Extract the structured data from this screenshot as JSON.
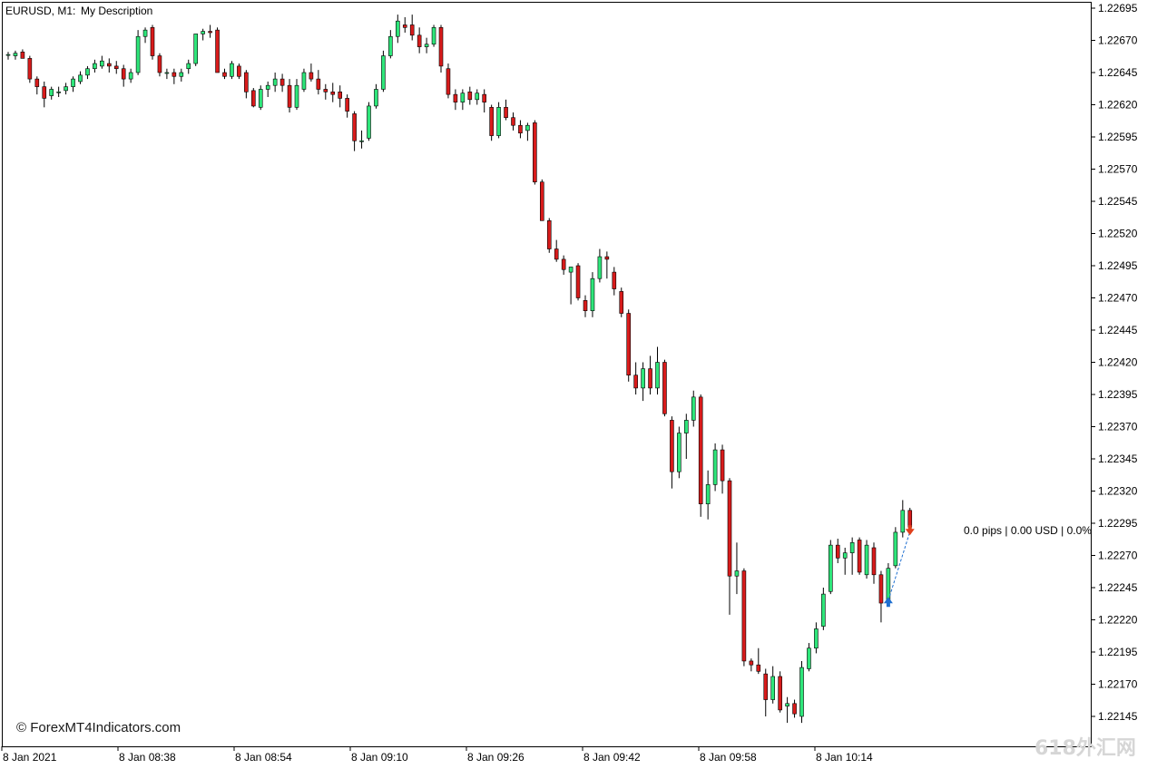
{
  "header": {
    "symbol_tf": "EURUSD, M1:",
    "description": "My Description"
  },
  "copyright": "© ForexMT4Indicators.com",
  "watermark": "618外汇网",
  "trade_info": "0.0 pips | 0.00 USD | 0.0%",
  "colors": {
    "bull": "#2ee67a",
    "bear": "#d81b1b",
    "wick": "#000000",
    "grid": "#000000",
    "buy_arrow": "#1e6fd0",
    "sell_arrow": "#e0401c",
    "trade_line": "#1e6fd0"
  },
  "chart_data": {
    "type": "candlestick",
    "symbol": "EURUSD",
    "timeframe": "M1",
    "ylim": [
      1.22128,
      1.22705
    ],
    "y_ticks": [
      "1.22695",
      "1.22670",
      "1.22645",
      "1.22620",
      "1.22595",
      "1.22570",
      "1.22545",
      "1.22520",
      "1.22495",
      "1.22470",
      "1.22445",
      "1.22420",
      "1.22395",
      "1.22370",
      "1.22345",
      "1.22320",
      "1.22295",
      "1.22270",
      "1.22245",
      "1.22220",
      "1.22195",
      "1.22170",
      "1.22145"
    ],
    "x_ticks": [
      "8 Jan 2021",
      "8 Jan 08:38",
      "8 Jan 08:54",
      "8 Jan 09:10",
      "8 Jan 09:26",
      "8 Jan 09:42",
      "8 Jan 09:58",
      "8 Jan 10:14"
    ],
    "candles": [
      {
        "o": 1.22659,
        "h": 1.22661,
        "l": 1.22655,
        "c": 1.22659
      },
      {
        "o": 1.22658,
        "h": 1.22662,
        "l": 1.22655,
        "c": 1.2266
      },
      {
        "o": 1.22661,
        "h": 1.22663,
        "l": 1.22656,
        "c": 1.22656
      },
      {
        "o": 1.22656,
        "h": 1.22658,
        "l": 1.22637,
        "c": 1.2264
      },
      {
        "o": 1.2264,
        "h": 1.22642,
        "l": 1.22628,
        "c": 1.22634
      },
      {
        "o": 1.22634,
        "h": 1.22638,
        "l": 1.22618,
        "c": 1.22625
      },
      {
        "o": 1.22627,
        "h": 1.22634,
        "l": 1.22624,
        "c": 1.22632
      },
      {
        "o": 1.2263,
        "h": 1.22634,
        "l": 1.22626,
        "c": 1.2263
      },
      {
        "o": 1.22631,
        "h": 1.22637,
        "l": 1.22628,
        "c": 1.22634
      },
      {
        "o": 1.22634,
        "h": 1.22642,
        "l": 1.2263,
        "c": 1.2264
      },
      {
        "o": 1.22638,
        "h": 1.22646,
        "l": 1.22636,
        "c": 1.22643
      },
      {
        "o": 1.22643,
        "h": 1.2265,
        "l": 1.2264,
        "c": 1.22648
      },
      {
        "o": 1.22648,
        "h": 1.22655,
        "l": 1.22645,
        "c": 1.22652
      },
      {
        "o": 1.2265,
        "h": 1.22658,
        "l": 1.22648,
        "c": 1.22654
      },
      {
        "o": 1.22652,
        "h": 1.22656,
        "l": 1.22645,
        "c": 1.2265
      },
      {
        "o": 1.2265,
        "h": 1.22654,
        "l": 1.22644,
        "c": 1.22648
      },
      {
        "o": 1.22648,
        "h": 1.22651,
        "l": 1.22634,
        "c": 1.2264
      },
      {
        "o": 1.2264,
        "h": 1.22648,
        "l": 1.22637,
        "c": 1.22645
      },
      {
        "o": 1.22645,
        "h": 1.22678,
        "l": 1.22643,
        "c": 1.22673
      },
      {
        "o": 1.22673,
        "h": 1.2268,
        "l": 1.22668,
        "c": 1.22678
      },
      {
        "o": 1.2268,
        "h": 1.22682,
        "l": 1.22655,
        "c": 1.22658
      },
      {
        "o": 1.22658,
        "h": 1.2266,
        "l": 1.22642,
        "c": 1.22645
      },
      {
        "o": 1.22645,
        "h": 1.22648,
        "l": 1.2264,
        "c": 1.22645
      },
      {
        "o": 1.22645,
        "h": 1.22648,
        "l": 1.22636,
        "c": 1.22642
      },
      {
        "o": 1.22642,
        "h": 1.22648,
        "l": 1.22638,
        "c": 1.22645
      },
      {
        "o": 1.22648,
        "h": 1.22655,
        "l": 1.22644,
        "c": 1.22652
      },
      {
        "o": 1.22652,
        "h": 1.22675,
        "l": 1.2265,
        "c": 1.22675
      },
      {
        "o": 1.22675,
        "h": 1.22679,
        "l": 1.2267,
        "c": 1.22677
      },
      {
        "o": 1.22677,
        "h": 1.22682,
        "l": 1.22672,
        "c": 1.22676
      },
      {
        "o": 1.22678,
        "h": 1.2268,
        "l": 1.22645,
        "c": 1.22645
      },
      {
        "o": 1.22645,
        "h": 1.22648,
        "l": 1.2264,
        "c": 1.22642
      },
      {
        "o": 1.22642,
        "h": 1.22654,
        "l": 1.2264,
        "c": 1.22652
      },
      {
        "o": 1.2265,
        "h": 1.22652,
        "l": 1.2264,
        "c": 1.22642
      },
      {
        "o": 1.22645,
        "h": 1.22647,
        "l": 1.22625,
        "c": 1.2263
      },
      {
        "o": 1.22631,
        "h": 1.22633,
        "l": 1.22618,
        "c": 1.22619
      },
      {
        "o": 1.22618,
        "h": 1.22635,
        "l": 1.22616,
        "c": 1.22632
      },
      {
        "o": 1.22632,
        "h": 1.22638,
        "l": 1.22626,
        "c": 1.22635
      },
      {
        "o": 1.22635,
        "h": 1.22645,
        "l": 1.2263,
        "c": 1.2264
      },
      {
        "o": 1.2264,
        "h": 1.22644,
        "l": 1.2263,
        "c": 1.22635
      },
      {
        "o": 1.22635,
        "h": 1.2264,
        "l": 1.22614,
        "c": 1.22618
      },
      {
        "o": 1.22618,
        "h": 1.2264,
        "l": 1.22616,
        "c": 1.22635
      },
      {
        "o": 1.22632,
        "h": 1.22648,
        "l": 1.2263,
        "c": 1.22645
      },
      {
        "o": 1.22645,
        "h": 1.22652,
        "l": 1.22638,
        "c": 1.2264
      },
      {
        "o": 1.2264,
        "h": 1.22647,
        "l": 1.22628,
        "c": 1.22632
      },
      {
        "o": 1.22632,
        "h": 1.22636,
        "l": 1.22624,
        "c": 1.2263
      },
      {
        "o": 1.2263,
        "h": 1.22637,
        "l": 1.22622,
        "c": 1.22628
      },
      {
        "o": 1.2263,
        "h": 1.22635,
        "l": 1.22618,
        "c": 1.22625
      },
      {
        "o": 1.22625,
        "h": 1.22628,
        "l": 1.2261,
        "c": 1.22615
      },
      {
        "o": 1.22613,
        "h": 1.22615,
        "l": 1.22584,
        "c": 1.22592
      },
      {
        "o": 1.22592,
        "h": 1.226,
        "l": 1.22586,
        "c": 1.22592
      },
      {
        "o": 1.22594,
        "h": 1.22622,
        "l": 1.22592,
        "c": 1.22619
      },
      {
        "o": 1.22619,
        "h": 1.22636,
        "l": 1.22617,
        "c": 1.22632
      },
      {
        "o": 1.22632,
        "h": 1.22662,
        "l": 1.2263,
        "c": 1.22658
      },
      {
        "o": 1.22658,
        "h": 1.22678,
        "l": 1.22656,
        "c": 1.22673
      },
      {
        "o": 1.22673,
        "h": 1.2269,
        "l": 1.22668,
        "c": 1.22685
      },
      {
        "o": 1.22682,
        "h": 1.22688,
        "l": 1.22676,
        "c": 1.2268
      },
      {
        "o": 1.22682,
        "h": 1.2269,
        "l": 1.2267,
        "c": 1.22674
      },
      {
        "o": 1.22674,
        "h": 1.2268,
        "l": 1.2266,
        "c": 1.22665
      },
      {
        "o": 1.22665,
        "h": 1.22672,
        "l": 1.2266,
        "c": 1.22667
      },
      {
        "o": 1.22667,
        "h": 1.22682,
        "l": 1.22665,
        "c": 1.2268
      },
      {
        "o": 1.2268,
        "h": 1.22682,
        "l": 1.22645,
        "c": 1.2265
      },
      {
        "o": 1.22648,
        "h": 1.22652,
        "l": 1.22625,
        "c": 1.22628
      },
      {
        "o": 1.22628,
        "h": 1.22632,
        "l": 1.22616,
        "c": 1.22622
      },
      {
        "o": 1.22622,
        "h": 1.22632,
        "l": 1.22616,
        "c": 1.22629
      },
      {
        "o": 1.2263,
        "h": 1.22634,
        "l": 1.2262,
        "c": 1.22624
      },
      {
        "o": 1.22624,
        "h": 1.22632,
        "l": 1.2262,
        "c": 1.22629
      },
      {
        "o": 1.22628,
        "h": 1.22632,
        "l": 1.22614,
        "c": 1.22622
      },
      {
        "o": 1.22618,
        "h": 1.2262,
        "l": 1.22592,
        "c": 1.22596
      },
      {
        "o": 1.22596,
        "h": 1.22622,
        "l": 1.22594,
        "c": 1.22618
      },
      {
        "o": 1.22618,
        "h": 1.22624,
        "l": 1.22608,
        "c": 1.2261
      },
      {
        "o": 1.2261,
        "h": 1.22614,
        "l": 1.226,
        "c": 1.22604
      },
      {
        "o": 1.22604,
        "h": 1.22608,
        "l": 1.22594,
        "c": 1.22598
      },
      {
        "o": 1.226,
        "h": 1.22606,
        "l": 1.22592,
        "c": 1.22604
      },
      {
        "o": 1.22606,
        "h": 1.22608,
        "l": 1.22558,
        "c": 1.2256
      },
      {
        "o": 1.2256,
        "h": 1.22562,
        "l": 1.2253,
        "c": 1.2253
      },
      {
        "o": 1.2253,
        "h": 1.22532,
        "l": 1.22505,
        "c": 1.22508
      },
      {
        "o": 1.22508,
        "h": 1.22515,
        "l": 1.22498,
        "c": 1.225
      },
      {
        "o": 1.225,
        "h": 1.22503,
        "l": 1.22488,
        "c": 1.22492
      },
      {
        "o": 1.2249,
        "h": 1.22492,
        "l": 1.22465,
        "c": 1.22494
      },
      {
        "o": 1.22495,
        "h": 1.22497,
        "l": 1.22468,
        "c": 1.2247
      },
      {
        "o": 1.22468,
        "h": 1.22472,
        "l": 1.22455,
        "c": 1.2246
      },
      {
        "o": 1.2246,
        "h": 1.2249,
        "l": 1.22455,
        "c": 1.22485
      },
      {
        "o": 1.22485,
        "h": 1.22508,
        "l": 1.22482,
        "c": 1.22502
      },
      {
        "o": 1.22502,
        "h": 1.22506,
        "l": 1.22485,
        "c": 1.225
      },
      {
        "o": 1.2249,
        "h": 1.22494,
        "l": 1.22472,
        "c": 1.22477
      },
      {
        "o": 1.22475,
        "h": 1.22478,
        "l": 1.22455,
        "c": 1.22458
      },
      {
        "o": 1.22458,
        "h": 1.22461,
        "l": 1.22405,
        "c": 1.2241
      },
      {
        "o": 1.2241,
        "h": 1.2242,
        "l": 1.22395,
        "c": 1.224
      },
      {
        "o": 1.224,
        "h": 1.2242,
        "l": 1.2239,
        "c": 1.22415
      },
      {
        "o": 1.22415,
        "h": 1.22425,
        "l": 1.22395,
        "c": 1.224
      },
      {
        "o": 1.224,
        "h": 1.22432,
        "l": 1.22395,
        "c": 1.2242
      },
      {
        "o": 1.2242,
        "h": 1.22422,
        "l": 1.22378,
        "c": 1.2238
      },
      {
        "o": 1.22375,
        "h": 1.22378,
        "l": 1.22322,
        "c": 1.22335
      },
      {
        "o": 1.22335,
        "h": 1.2237,
        "l": 1.2233,
        "c": 1.22365
      },
      {
        "o": 1.22365,
        "h": 1.2238,
        "l": 1.22345,
        "c": 1.22375
      },
      {
        "o": 1.22375,
        "h": 1.22398,
        "l": 1.2237,
        "c": 1.22393
      },
      {
        "o": 1.22393,
        "h": 1.22395,
        "l": 1.223,
        "c": 1.2231
      },
      {
        "o": 1.2231,
        "h": 1.22336,
        "l": 1.22298,
        "c": 1.22325
      },
      {
        "o": 1.22325,
        "h": 1.22357,
        "l": 1.2232,
        "c": 1.22352
      },
      {
        "o": 1.22352,
        "h": 1.22356,
        "l": 1.22318,
        "c": 1.22328
      },
      {
        "o": 1.22328,
        "h": 1.2233,
        "l": 1.22224,
        "c": 1.22254
      },
      {
        "o": 1.22254,
        "h": 1.2228,
        "l": 1.2224,
        "c": 1.22258
      },
      {
        "o": 1.22258,
        "h": 1.2226,
        "l": 1.22184,
        "c": 1.22188
      },
      {
        "o": 1.22188,
        "h": 1.2219,
        "l": 1.2218,
        "c": 1.22185
      },
      {
        "o": 1.22185,
        "h": 1.22198,
        "l": 1.22178,
        "c": 1.2218
      },
      {
        "o": 1.22178,
        "h": 1.22182,
        "l": 1.22145,
        "c": 1.22158
      },
      {
        "o": 1.22158,
        "h": 1.22184,
        "l": 1.22155,
        "c": 1.22176
      },
      {
        "o": 1.22176,
        "h": 1.2218,
        "l": 1.22148,
        "c": 1.2215
      },
      {
        "o": 1.22153,
        "h": 1.2216,
        "l": 1.2214,
        "c": 1.22155
      },
      {
        "o": 1.22155,
        "h": 1.22158,
        "l": 1.22144,
        "c": 1.22147
      },
      {
        "o": 1.22145,
        "h": 1.22188,
        "l": 1.2214,
        "c": 1.22183
      },
      {
        "o": 1.22182,
        "h": 1.22202,
        "l": 1.2218,
        "c": 1.22198
      },
      {
        "o": 1.22198,
        "h": 1.22218,
        "l": 1.22194,
        "c": 1.22213
      },
      {
        "o": 1.22215,
        "h": 1.22245,
        "l": 1.22212,
        "c": 1.2224
      },
      {
        "o": 1.22242,
        "h": 1.22282,
        "l": 1.2224,
        "c": 1.22278
      },
      {
        "o": 1.22278,
        "h": 1.22283,
        "l": 1.22264,
        "c": 1.22268
      },
      {
        "o": 1.22268,
        "h": 1.22276,
        "l": 1.22255,
        "c": 1.22272
      },
      {
        "o": 1.22272,
        "h": 1.22284,
        "l": 1.22255,
        "c": 1.2228
      },
      {
        "o": 1.22282,
        "h": 1.22284,
        "l": 1.22255,
        "c": 1.22257
      },
      {
        "o": 1.22255,
        "h": 1.22282,
        "l": 1.22252,
        "c": 1.22278
      },
      {
        "o": 1.22276,
        "h": 1.2228,
        "l": 1.22248,
        "c": 1.22255
      },
      {
        "o": 1.22255,
        "h": 1.22258,
        "l": 1.22218,
        "c": 1.22233
      },
      {
        "o": 1.22235,
        "h": 1.22264,
        "l": 1.22232,
        "c": 1.2226
      },
      {
        "o": 1.22262,
        "h": 1.22292,
        "l": 1.2226,
        "c": 1.22288
      },
      {
        "o": 1.22288,
        "h": 1.22313,
        "l": 1.22284,
        "c": 1.22305
      },
      {
        "o": 1.22305,
        "h": 1.22307,
        "l": 1.2229,
        "c": 1.22292
      }
    ],
    "grid": false,
    "legend": "none"
  }
}
